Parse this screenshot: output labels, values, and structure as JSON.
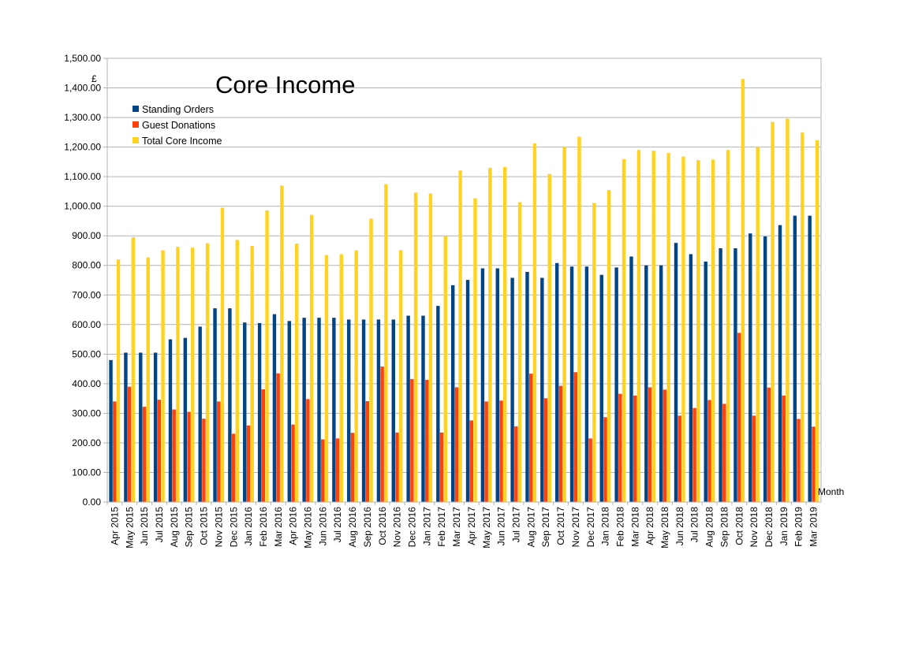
{
  "chart_data": {
    "type": "bar",
    "title": "Core Income",
    "ylabel": "£",
    "xlabel": "Month",
    "ylim": [
      0,
      1500
    ],
    "yticks": [
      "0.00",
      "100.00",
      "200.00",
      "300.00",
      "400.00",
      "500.00",
      "600.00",
      "700.00",
      "800.00",
      "900.00",
      "1,000.00",
      "1,100.00",
      "1,200.00",
      "1,300.00",
      "1,400.00",
      "1,500.00"
    ],
    "grid": true,
    "legend_position": "top-left",
    "categories": [
      "Apr 2015",
      "May 2015",
      "Jun 2015",
      "Jul 2015",
      "Aug 2015",
      "Sep 2015",
      "Oct 2015",
      "Nov 2015",
      "Dec 2015",
      "Jan 2016",
      "Feb 2016",
      "Mar 2016",
      "Apr 2016",
      "May 2016",
      "Jun 2016",
      "Jul 2016",
      "Aug 2016",
      "Sep 2016",
      "Oct 2016",
      "Nov 2016",
      "Dec 2016",
      "Jan 2017",
      "Feb 2017",
      "Mar 2017",
      "Apr 2017",
      "May 2017",
      "Jun 2017",
      "Jul 2017",
      "Aug 2017",
      "Sep 2017",
      "Oct 2017",
      "Nov 2017",
      "Dec 2017",
      "Jan 2018",
      "Feb 2018",
      "Mar 2018",
      "Apr 2018",
      "May 2018",
      "Jun 2018",
      "Jul 2018",
      "Aug 2018",
      "Sep 2018",
      "Oct 2018",
      "Nov 2018",
      "Dec 2018",
      "Jan 2019",
      "Feb 2019",
      "Mar 2019"
    ],
    "series": [
      {
        "name": "Standing Orders",
        "color": "#004586",
        "values": [
          480,
          505,
          505,
          505,
          550,
          555,
          593,
          655,
          655,
          607,
          605,
          635,
          612,
          623,
          623,
          623,
          617,
          617,
          617,
          617,
          630,
          630,
          663,
          733,
          751,
          790,
          790,
          758,
          778,
          758,
          808,
          796,
          796,
          768,
          793,
          830,
          800,
          800,
          876,
          838,
          813,
          858,
          858,
          908,
          898,
          936,
          968,
          968
        ]
      },
      {
        "name": "Guest Donations",
        "color": "#ff420e",
        "values": [
          340,
          390,
          322,
          346,
          313,
          305,
          282,
          340,
          231,
          259,
          381,
          435,
          262,
          348,
          212,
          215,
          234,
          341,
          458,
          235,
          416,
          413,
          235,
          388,
          276,
          340,
          343,
          256,
          434,
          351,
          393,
          439,
          215,
          287,
          366,
          360,
          388,
          380,
          292,
          318,
          345,
          332,
          572,
          292,
          387,
          360,
          281,
          255
        ]
      },
      {
        "name": "Total Core Income",
        "color": "#ffd320",
        "values": [
          820,
          895,
          827,
          851,
          863,
          860,
          875,
          995,
          886,
          866,
          986,
          1070,
          874,
          971,
          835,
          838,
          851,
          958,
          1075,
          852,
          1046,
          1043,
          898,
          1121,
          1027,
          1130,
          1133,
          1014,
          1212,
          1109,
          1201,
          1235,
          1011,
          1055,
          1159,
          1190,
          1188,
          1180,
          1168,
          1156,
          1158,
          1190,
          1430,
          1200,
          1285,
          1296,
          1249,
          1223
        ]
      }
    ]
  }
}
